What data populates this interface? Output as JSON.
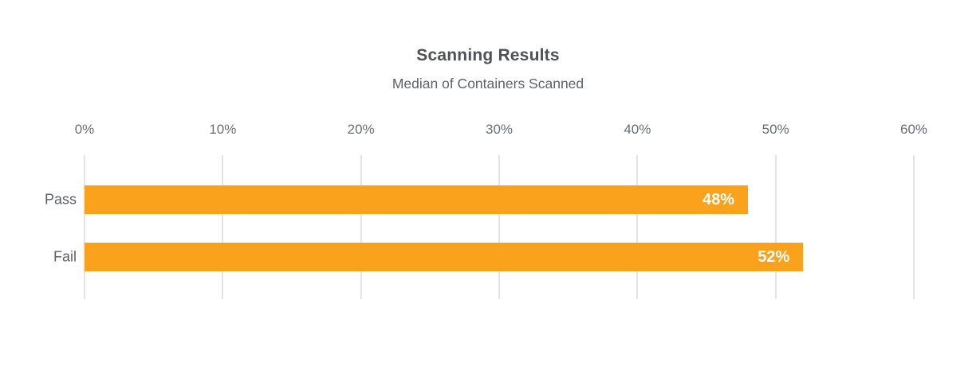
{
  "chart_data": {
    "type": "bar",
    "orientation": "horizontal",
    "title": "Scanning Results",
    "subtitle": "Median of Containers Scanned",
    "categories": [
      "Pass",
      "Fail"
    ],
    "values": [
      48,
      52
    ],
    "value_labels": [
      "48%",
      "52%"
    ],
    "x_ticks": [
      "0%",
      "10%",
      "20%",
      "30%",
      "40%",
      "50%",
      "60%"
    ],
    "x_tick_values": [
      0,
      10,
      20,
      30,
      40,
      50,
      60
    ],
    "xlim": [
      0,
      60
    ],
    "grid": true,
    "legend": "none",
    "colors": {
      "bar": "#faa21b",
      "bar_value_text": "#ffffff",
      "gridline": "#e3e3e5",
      "title_text": "#4e5257",
      "subtitle_text": "#5f6368",
      "tick_text": "#6a6e74",
      "category_text": "#5d6166"
    }
  }
}
